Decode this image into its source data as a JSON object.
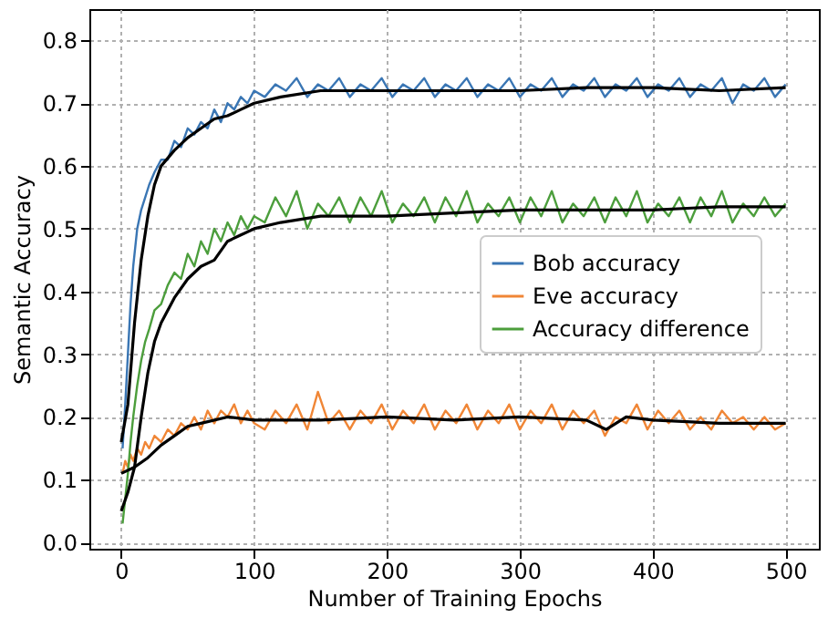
{
  "chart_data": {
    "type": "line",
    "xlabel": "Number of Training Epochs",
    "ylabel": "Semantic Accuracy",
    "xlim": [
      -24,
      525
    ],
    "ylim": [
      -0.01,
      0.85
    ],
    "xticks": [
      0,
      100,
      200,
      300,
      400,
      500
    ],
    "yticks": [
      {
        "value": 0,
        "label": "0.0"
      },
      0.1,
      0.2,
      0.3,
      0.4,
      0.5,
      0.6,
      0.7,
      0.8
    ],
    "grid": true,
    "legend": "right",
    "line_style": "solid",
    "marker": "none",
    "series": [
      {
        "name": "Bob accuracy",
        "color": "#3a76b4",
        "x": [
          1,
          3,
          5,
          7,
          9,
          12,
          15,
          18,
          21,
          25,
          30,
          35,
          40,
          45,
          50,
          55,
          60,
          65,
          70,
          75,
          80,
          85,
          90,
          95,
          100,
          108,
          116,
          124,
          132,
          140,
          148,
          156,
          164,
          172,
          180,
          188,
          196,
          204,
          212,
          220,
          228,
          236,
          244,
          252,
          260,
          268,
          276,
          284,
          292,
          300,
          308,
          316,
          324,
          332,
          340,
          348,
          356,
          364,
          372,
          380,
          388,
          396,
          404,
          412,
          420,
          428,
          436,
          444,
          452,
          460,
          468,
          476,
          484,
          492,
          500
        ],
        "values": [
          0.15,
          0.22,
          0.3,
          0.38,
          0.44,
          0.5,
          0.53,
          0.55,
          0.57,
          0.59,
          0.61,
          0.61,
          0.64,
          0.63,
          0.66,
          0.65,
          0.67,
          0.66,
          0.69,
          0.67,
          0.7,
          0.69,
          0.71,
          0.7,
          0.72,
          0.71,
          0.73,
          0.72,
          0.74,
          0.71,
          0.73,
          0.72,
          0.74,
          0.71,
          0.73,
          0.72,
          0.74,
          0.71,
          0.73,
          0.72,
          0.74,
          0.71,
          0.73,
          0.72,
          0.74,
          0.71,
          0.73,
          0.72,
          0.74,
          0.71,
          0.73,
          0.72,
          0.74,
          0.71,
          0.73,
          0.72,
          0.74,
          0.71,
          0.73,
          0.72,
          0.74,
          0.71,
          0.73,
          0.72,
          0.74,
          0.71,
          0.73,
          0.72,
          0.74,
          0.7,
          0.73,
          0.72,
          0.74,
          0.71,
          0.73
        ]
      },
      {
        "name": "Eve accuracy",
        "color": "#f08636",
        "x": [
          1,
          3,
          5,
          7,
          9,
          12,
          15,
          18,
          21,
          25,
          30,
          35,
          40,
          45,
          50,
          55,
          60,
          65,
          70,
          75,
          80,
          85,
          90,
          95,
          100,
          108,
          116,
          124,
          132,
          140,
          148,
          156,
          164,
          172,
          180,
          188,
          196,
          204,
          212,
          220,
          228,
          236,
          244,
          252,
          260,
          268,
          276,
          284,
          292,
          300,
          308,
          316,
          324,
          332,
          340,
          348,
          356,
          364,
          372,
          380,
          388,
          396,
          404,
          412,
          420,
          428,
          436,
          444,
          452,
          460,
          468,
          476,
          484,
          492,
          500
        ],
        "values": [
          0.11,
          0.13,
          0.12,
          0.14,
          0.13,
          0.15,
          0.14,
          0.16,
          0.15,
          0.17,
          0.16,
          0.18,
          0.17,
          0.19,
          0.18,
          0.2,
          0.18,
          0.21,
          0.19,
          0.21,
          0.2,
          0.22,
          0.19,
          0.21,
          0.19,
          0.18,
          0.21,
          0.19,
          0.22,
          0.18,
          0.24,
          0.19,
          0.21,
          0.18,
          0.21,
          0.19,
          0.22,
          0.18,
          0.21,
          0.19,
          0.22,
          0.18,
          0.21,
          0.19,
          0.22,
          0.18,
          0.21,
          0.19,
          0.22,
          0.18,
          0.21,
          0.19,
          0.22,
          0.18,
          0.21,
          0.19,
          0.21,
          0.17,
          0.2,
          0.19,
          0.22,
          0.18,
          0.21,
          0.19,
          0.21,
          0.18,
          0.2,
          0.18,
          0.21,
          0.19,
          0.2,
          0.18,
          0.2,
          0.18,
          0.19
        ]
      },
      {
        "name": "Accuracy difference",
        "color": "#4c9e3c",
        "x": [
          1,
          3,
          5,
          7,
          9,
          12,
          15,
          18,
          21,
          25,
          30,
          35,
          40,
          45,
          50,
          55,
          60,
          65,
          70,
          75,
          80,
          85,
          90,
          95,
          100,
          108,
          116,
          124,
          132,
          140,
          148,
          156,
          164,
          172,
          180,
          188,
          196,
          204,
          212,
          220,
          228,
          236,
          244,
          252,
          260,
          268,
          276,
          284,
          292,
          300,
          308,
          316,
          324,
          332,
          340,
          348,
          356,
          364,
          372,
          380,
          388,
          396,
          404,
          412,
          420,
          428,
          436,
          444,
          452,
          460,
          468,
          476,
          484,
          492,
          500
        ],
        "values": [
          0.03,
          0.07,
          0.11,
          0.16,
          0.2,
          0.25,
          0.29,
          0.32,
          0.34,
          0.37,
          0.38,
          0.41,
          0.43,
          0.42,
          0.46,
          0.44,
          0.48,
          0.46,
          0.5,
          0.48,
          0.51,
          0.49,
          0.52,
          0.5,
          0.52,
          0.51,
          0.55,
          0.52,
          0.56,
          0.5,
          0.54,
          0.52,
          0.55,
          0.51,
          0.55,
          0.52,
          0.56,
          0.51,
          0.54,
          0.52,
          0.55,
          0.51,
          0.55,
          0.52,
          0.56,
          0.51,
          0.54,
          0.52,
          0.55,
          0.51,
          0.55,
          0.52,
          0.56,
          0.51,
          0.54,
          0.52,
          0.55,
          0.51,
          0.55,
          0.52,
          0.56,
          0.51,
          0.54,
          0.52,
          0.55,
          0.51,
          0.55,
          0.52,
          0.56,
          0.51,
          0.54,
          0.52,
          0.55,
          0.52,
          0.54
        ]
      },
      {
        "color": "#000000",
        "x": [
          0,
          5,
          10,
          15,
          20,
          25,
          30,
          40,
          50,
          60,
          70,
          80,
          90,
          100,
          120,
          150,
          200,
          250,
          300,
          350,
          400,
          450,
          500
        ],
        "values": [
          0.16,
          0.22,
          0.35,
          0.45,
          0.52,
          0.57,
          0.6,
          0.625,
          0.645,
          0.66,
          0.675,
          0.68,
          0.69,
          0.7,
          0.71,
          0.72,
          0.72,
          0.72,
          0.72,
          0.725,
          0.725,
          0.72,
          0.725
        ]
      },
      {
        "color": "#000000",
        "x": [
          0,
          10,
          20,
          30,
          40,
          50,
          60,
          80,
          100,
          150,
          200,
          250,
          300,
          350,
          365,
          380,
          400,
          450,
          500
        ],
        "values": [
          0.11,
          0.12,
          0.135,
          0.155,
          0.17,
          0.185,
          0.19,
          0.2,
          0.195,
          0.195,
          0.2,
          0.195,
          0.2,
          0.195,
          0.18,
          0.2,
          0.195,
          0.19,
          0.19
        ]
      },
      {
        "color": "#000000",
        "x": [
          0,
          5,
          10,
          15,
          20,
          25,
          30,
          40,
          50,
          60,
          70,
          80,
          90,
          100,
          120,
          150,
          200,
          250,
          300,
          350,
          400,
          450,
          500
        ],
        "values": [
          0.05,
          0.08,
          0.12,
          0.2,
          0.27,
          0.32,
          0.35,
          0.39,
          0.42,
          0.44,
          0.45,
          0.48,
          0.49,
          0.5,
          0.51,
          0.52,
          0.52,
          0.525,
          0.53,
          0.53,
          0.53,
          0.535,
          0.535
        ]
      }
    ]
  }
}
